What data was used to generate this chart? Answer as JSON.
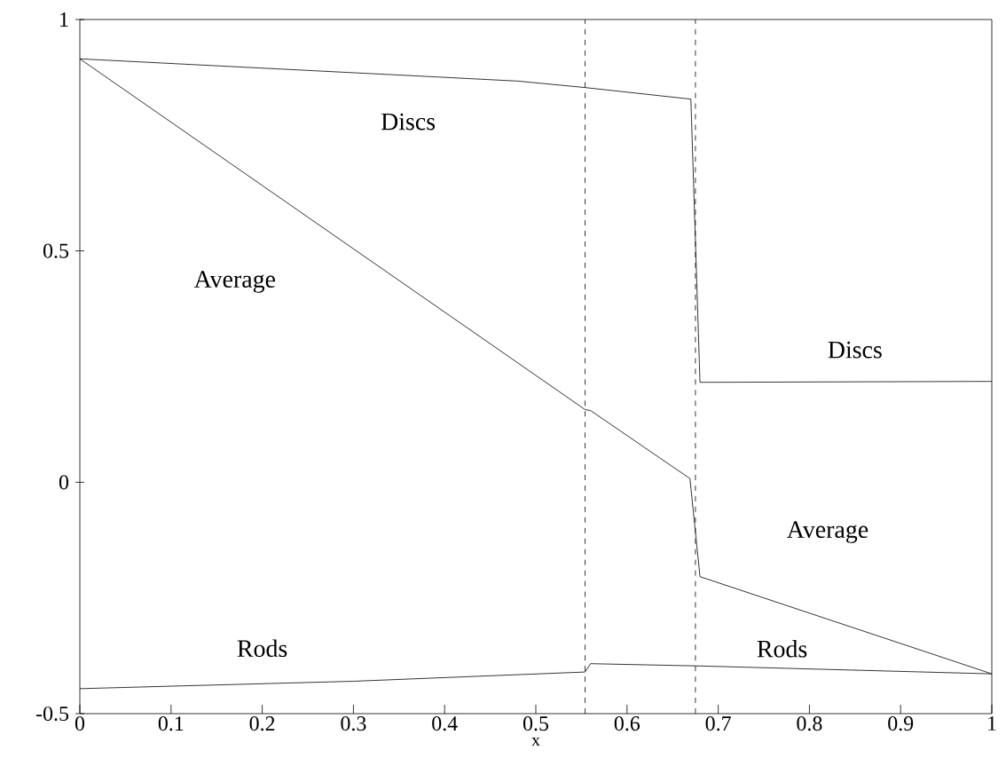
{
  "chart_data": {
    "type": "line",
    "xlabel": "x",
    "xlim": [
      0,
      1
    ],
    "ylim": [
      -0.5,
      1
    ],
    "xticks": [
      0,
      0.1,
      0.2,
      0.3,
      0.4,
      0.5,
      0.6,
      0.7,
      0.8,
      0.9,
      1
    ],
    "yticks": [
      -0.5,
      0,
      0.5,
      1
    ],
    "series": [
      {
        "name": "Discs",
        "color": "#000000",
        "x": [
          0,
          0.25,
          0.48,
          0.554,
          0.67,
          0.68,
          1
        ],
        "values": [
          0.915,
          0.89,
          0.867,
          0.853,
          0.828,
          0.216,
          0.218
        ]
      },
      {
        "name": "Average",
        "color": "#000000",
        "x": [
          0,
          0.554,
          0.56,
          0.669,
          0.68,
          1
        ],
        "values": [
          0.915,
          0.157,
          0.155,
          0.008,
          -0.204,
          -0.414
        ]
      },
      {
        "name": "Rods",
        "color": "#000000",
        "x": [
          0,
          0.3,
          0.554,
          0.56,
          0.68,
          1
        ],
        "values": [
          -0.446,
          -0.43,
          -0.41,
          -0.392,
          -0.397,
          -0.414
        ]
      }
    ],
    "ref_lines": [
      {
        "axis": "x",
        "value": 0.554,
        "color": "#000000",
        "line_style": "dashed"
      },
      {
        "axis": "x",
        "value": 0.675,
        "color": "#000000",
        "line_style": "dashed"
      }
    ],
    "marker": "none",
    "line_style": "solid",
    "grid": false
  }
}
